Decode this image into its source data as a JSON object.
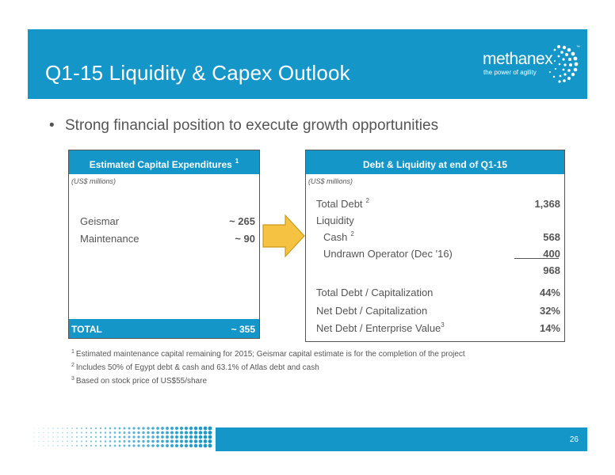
{
  "header": {
    "title": "Q1-15 Liquidity & Capex Outlook",
    "logo_name": "methanex",
    "logo_tagline": "the power of agility",
    "logo_tm": "™"
  },
  "bullet": {
    "marker": "•",
    "text": "Strong financial position to execute growth opportunities"
  },
  "capex_table": {
    "title": "Estimated Capital Expenditures",
    "title_note": "1",
    "units": "(US$ millions)",
    "rows": [
      {
        "label": "Geismar",
        "value": "~ 265"
      },
      {
        "label": "Maintenance",
        "value": "~ 90"
      }
    ],
    "total_label": "TOTAL",
    "total_value": "~ 355"
  },
  "liquidity_table": {
    "title": "Debt & Liquidity at end of Q1-15",
    "units": "(US$ millions)",
    "total_debt_label": "Total Debt",
    "total_debt_note": "2",
    "total_debt_value": "1,368",
    "liquidity_label": "Liquidity",
    "cash_label": "Cash",
    "cash_note": "2",
    "cash_value": "568",
    "undrawn_label": "Undrawn Operator (Dec '16)",
    "undrawn_value": "400",
    "liquidity_total": "968",
    "ratios": [
      {
        "label": "Total Debt / Capitalization",
        "note": "",
        "value": "44%"
      },
      {
        "label": "Net Debt / Capitalization",
        "note": "",
        "value": "32%"
      },
      {
        "label": "Net Debt / Enterprise Value",
        "note": "3",
        "value": "14%"
      }
    ]
  },
  "footnotes": [
    {
      "num": "1",
      "text": "Estimated maintenance capital remaining for 2015; Geismar capital estimate is for the completion of the project"
    },
    {
      "num": "2",
      "text": "Includes 50% of Egypt debt & cash and 63.1% of Atlas debt and cash"
    },
    {
      "num": "3",
      "text": "Based on stock price of US$55/share"
    }
  ],
  "page_number": "26",
  "colors": {
    "brand_blue": "#1596c8",
    "arrow_fill": "#f6c242",
    "arrow_stroke": "#c99a1c"
  }
}
